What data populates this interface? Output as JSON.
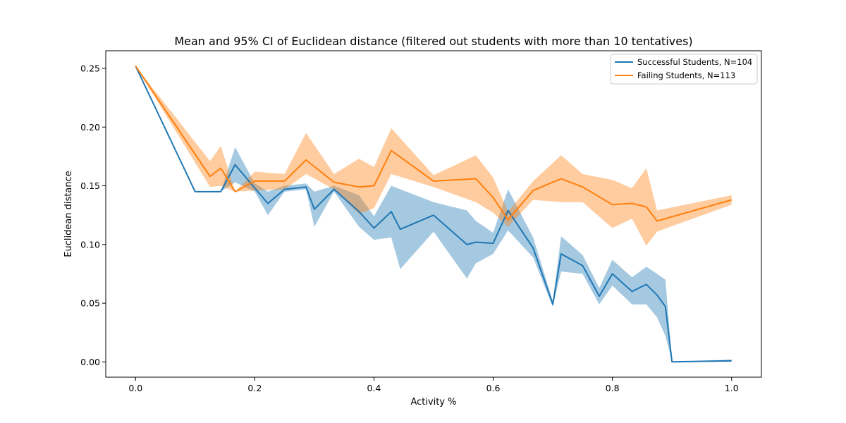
{
  "chart_data": {
    "type": "line",
    "title": "Mean and 95% CI of Euclidean distance (filtered out students with more than 10 tentatives)",
    "xlabel": "Activity %",
    "ylabel": "Euclidean distance",
    "xlim": [
      -0.05,
      1.05
    ],
    "ylim": [
      -0.013,
      0.265
    ],
    "xticks": [
      0.0,
      0.2,
      0.4,
      0.6,
      0.8,
      1.0
    ],
    "xtick_labels": [
      "0.0",
      "0.2",
      "0.4",
      "0.6",
      "0.8",
      "1.0"
    ],
    "yticks": [
      0.0,
      0.05,
      0.1,
      0.15,
      0.2,
      0.25
    ],
    "ytick_labels": [
      "0.00",
      "0.05",
      "0.10",
      "0.15",
      "0.20",
      "0.25"
    ],
    "legend_position": "top-right",
    "series": [
      {
        "name": "Successful Students, N=104",
        "color": "#1f77b4",
        "x": [
          0.0,
          0.1,
          0.143,
          0.167,
          0.2,
          0.222,
          0.25,
          0.286,
          0.3,
          0.333,
          0.375,
          0.4,
          0.429,
          0.444,
          0.5,
          0.556,
          0.571,
          0.6,
          0.625,
          0.667,
          0.7,
          0.714,
          0.75,
          0.778,
          0.8,
          0.833,
          0.857,
          0.875,
          0.889,
          0.9,
          1.0
        ],
        "mean": [
          0.252,
          0.145,
          0.145,
          0.168,
          0.148,
          0.135,
          0.147,
          0.149,
          0.13,
          0.147,
          0.128,
          0.114,
          0.128,
          0.113,
          0.125,
          0.1,
          0.102,
          0.101,
          0.129,
          0.097,
          0.049,
          0.092,
          0.082,
          0.056,
          0.075,
          0.06,
          0.066,
          0.057,
          0.047,
          0.0,
          0.001
        ],
        "lower": [
          0.252,
          0.145,
          0.145,
          0.153,
          0.145,
          0.125,
          0.145,
          0.147,
          0.115,
          0.145,
          0.115,
          0.104,
          0.106,
          0.079,
          0.111,
          0.071,
          0.084,
          0.092,
          0.112,
          0.089,
          0.047,
          0.077,
          0.075,
          0.049,
          0.065,
          0.049,
          0.049,
          0.038,
          0.022,
          0.0,
          0.0
        ],
        "upper": [
          0.252,
          0.145,
          0.145,
          0.183,
          0.152,
          0.145,
          0.15,
          0.152,
          0.145,
          0.15,
          0.142,
          0.124,
          0.15,
          0.147,
          0.136,
          0.129,
          0.12,
          0.11,
          0.147,
          0.106,
          0.052,
          0.107,
          0.091,
          0.063,
          0.087,
          0.072,
          0.081,
          0.075,
          0.07,
          0.0,
          0.002
        ]
      },
      {
        "name": "Failing Students, N=113",
        "color": "#ff7f0e",
        "x": [
          0.0,
          0.125,
          0.143,
          0.167,
          0.2,
          0.25,
          0.286,
          0.333,
          0.375,
          0.4,
          0.429,
          0.5,
          0.571,
          0.6,
          0.625,
          0.667,
          0.714,
          0.75,
          0.8,
          0.833,
          0.857,
          0.875,
          1.0
        ],
        "mean": [
          0.252,
          0.158,
          0.165,
          0.145,
          0.154,
          0.154,
          0.172,
          0.153,
          0.149,
          0.15,
          0.18,
          0.154,
          0.156,
          0.14,
          0.121,
          0.146,
          0.156,
          0.149,
          0.134,
          0.135,
          0.132,
          0.12,
          0.138
        ],
        "lower": [
          0.252,
          0.149,
          0.15,
          0.145,
          0.146,
          0.147,
          0.16,
          0.147,
          0.126,
          0.131,
          0.16,
          0.149,
          0.136,
          0.127,
          0.115,
          0.138,
          0.136,
          0.136,
          0.114,
          0.122,
          0.099,
          0.111,
          0.134
        ],
        "upper": [
          0.252,
          0.171,
          0.184,
          0.145,
          0.162,
          0.16,
          0.195,
          0.16,
          0.173,
          0.166,
          0.199,
          0.159,
          0.176,
          0.157,
          0.128,
          0.154,
          0.176,
          0.16,
          0.155,
          0.148,
          0.165,
          0.129,
          0.142
        ]
      }
    ]
  }
}
